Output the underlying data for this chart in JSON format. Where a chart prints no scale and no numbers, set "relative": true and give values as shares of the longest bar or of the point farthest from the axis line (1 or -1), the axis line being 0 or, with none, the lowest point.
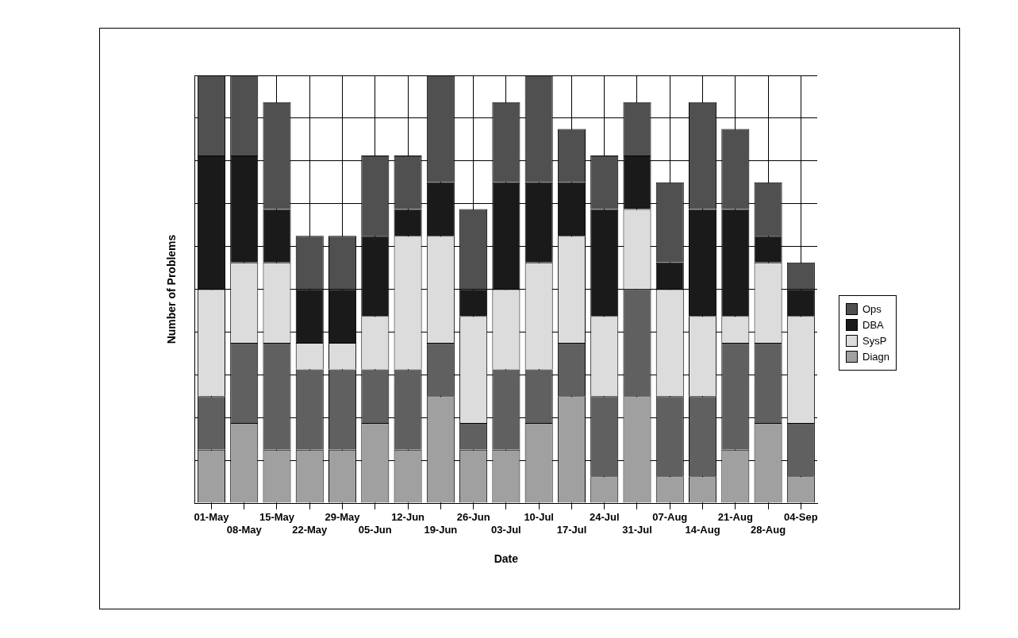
{
  "chart_data": {
    "type": "bar",
    "stacked": true,
    "relative": true,
    "xlabel": "Date",
    "ylabel": "Number of Problems",
    "categories": [
      "01-May",
      "08-May",
      "15-May",
      "22-May",
      "29-May",
      "05-Jun",
      "12-Jun",
      "19-Jun",
      "26-Jun",
      "03-Jul",
      "10-Jul",
      "17-Jul",
      "24-Jul",
      "31-Jul",
      "07-Aug",
      "14-Aug",
      "21-Aug",
      "28-Aug",
      "04-Sep"
    ],
    "series": [
      {
        "name": "Diagn",
        "color": "#a0a0a0",
        "values": [
          0.125,
          0.1875,
          0.125,
          0.125,
          0.125,
          0.1875,
          0.125,
          0.25,
          0.125,
          0.125,
          0.1875,
          0.25,
          0.0625,
          0.25,
          0.0625,
          0.0625,
          0.125,
          0.1875,
          0.0625
        ]
      },
      {
        "color": "#606060",
        "values": [
          0.125,
          0.1875,
          0.25,
          0.1875,
          0.1875,
          0.125,
          0.1875,
          0.125,
          0.0625,
          0.1875,
          0.125,
          0.125,
          0.1875,
          0.25,
          0.1875,
          0.1875,
          0.25,
          0.1875,
          0.125
        ]
      },
      {
        "name": "SysP",
        "color": "#dcdcdc",
        "values": [
          0.25,
          0.1875,
          0.1875,
          0.0625,
          0.0625,
          0.125,
          0.3125,
          0.25,
          0.25,
          0.1875,
          0.25,
          0.25,
          0.1875,
          0.1875,
          0.25,
          0.1875,
          0.0625,
          0.1875,
          0.25
        ]
      },
      {
        "name": "DBA",
        "color": "#1a1a1a",
        "values": [
          0.3125,
          0.25,
          0.125,
          0.125,
          0.125,
          0.1875,
          0.0625,
          0.125,
          0.0625,
          0.25,
          0.1875,
          0.125,
          0.25,
          0.125,
          0.0625,
          0.25,
          0.25,
          0.0625,
          0.0625
        ]
      },
      {
        "name": "Ops",
        "color": "#505050",
        "values": [
          0.1875,
          0.1875,
          0.25,
          0.125,
          0.125,
          0.1875,
          0.125,
          0.25,
          0.1875,
          0.1875,
          0.25,
          0.125,
          0.125,
          0.125,
          0.1875,
          0.25,
          0.1875,
          0.125,
          0.0625
        ]
      }
    ],
    "grid": true,
    "legend": "right"
  }
}
